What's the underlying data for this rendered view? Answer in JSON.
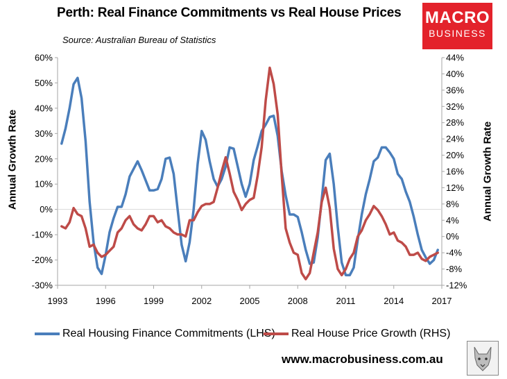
{
  "chart_data": {
    "type": "line",
    "title": "Perth: Real Finance Commitments vs Real House Prices",
    "subtitle": "Source: Australian Bureau of Statistics",
    "ylabel_left": "Annual Growth Rate",
    "ylabel_right": "Annual Growth Rate",
    "xlim": [
      1993,
      2017
    ],
    "x_ticks": [
      "1993",
      "1996",
      "1999",
      "2002",
      "2005",
      "2008",
      "2011",
      "2014",
      "2017"
    ],
    "y_left": {
      "range": [
        -30,
        60
      ],
      "ticks": [
        "60%",
        "50%",
        "40%",
        "30%",
        "20%",
        "10%",
        "0%",
        "-10%",
        "-20%",
        "-30%"
      ]
    },
    "y_right": {
      "range": [
        -12,
        44
      ],
      "ticks": [
        "44%",
        "40%",
        "36%",
        "32%",
        "28%",
        "24%",
        "20%",
        "16%",
        "12%",
        "8%",
        "4%",
        "0%",
        "-4%",
        "-8%",
        "-12%"
      ]
    },
    "series": [
      {
        "name": "Real Housing Finance Commitments (LHS)",
        "axis": "left",
        "color": "#4a7ebb",
        "x": [
          1993.25,
          1993.5,
          1993.75,
          1994,
          1994.25,
          1994.5,
          1994.75,
          1995,
          1995.25,
          1995.5,
          1995.75,
          1996,
          1996.25,
          1996.5,
          1996.75,
          1997,
          1997.25,
          1997.5,
          1997.75,
          1998,
          1998.25,
          1998.5,
          1998.75,
          1999,
          1999.25,
          1999.5,
          1999.75,
          2000,
          2000.25,
          2000.5,
          2000.75,
          2001,
          2001.25,
          2001.5,
          2001.75,
          2002,
          2002.25,
          2002.5,
          2002.75,
          2003,
          2003.25,
          2003.5,
          2003.75,
          2004,
          2004.25,
          2004.5,
          2004.75,
          2005,
          2005.25,
          2005.5,
          2005.75,
          2006,
          2006.25,
          2006.5,
          2006.75,
          2007,
          2007.25,
          2007.5,
          2007.75,
          2008,
          2008.25,
          2008.5,
          2008.75,
          2009,
          2009.25,
          2009.5,
          2009.75,
          2010,
          2010.25,
          2010.5,
          2010.75,
          2011,
          2011.25,
          2011.5,
          2011.75,
          2012,
          2012.25,
          2012.5,
          2012.75,
          2013,
          2013.25,
          2013.5,
          2013.75,
          2014,
          2014.25,
          2014.5,
          2014.75,
          2015,
          2015.25,
          2015.5,
          2015.75,
          2016,
          2016.25,
          2016.5,
          2016.75
        ],
        "values": [
          26,
          32,
          40,
          49.5,
          52,
          44,
          27,
          3,
          -13,
          -23,
          -25.5,
          -18,
          -9,
          -3.5,
          1,
          1,
          6,
          13,
          16,
          19,
          15.5,
          11.5,
          7.5,
          7.5,
          8,
          12,
          20,
          20.5,
          14,
          0,
          -14,
          -20.5,
          -13,
          0,
          18,
          31,
          27.5,
          19,
          12,
          9,
          12,
          17,
          24.5,
          24,
          17,
          10,
          5,
          10,
          19.5,
          25,
          31,
          33.5,
          36.5,
          37,
          29,
          15,
          5.5,
          -2,
          -2,
          -3,
          -9,
          -16,
          -21.5,
          -21,
          -11,
          4,
          19.5,
          22,
          10,
          -7,
          -21,
          -26,
          -26,
          -23,
          -12,
          -2,
          6,
          12,
          19,
          20.5,
          24.5,
          24.5,
          22.5,
          20,
          14,
          12,
          7,
          3,
          -3,
          -10,
          -16,
          -19,
          -21.5,
          -20,
          -16
        ]
      },
      {
        "name": "Real House Price Growth (RHS)",
        "axis": "right",
        "color": "#be4b48",
        "x": [
          1993.25,
          1993.5,
          1993.75,
          1994,
          1994.25,
          1994.5,
          1994.75,
          1995,
          1995.25,
          1995.5,
          1995.75,
          1996,
          1996.25,
          1996.5,
          1996.75,
          1997,
          1997.25,
          1997.5,
          1997.75,
          1998,
          1998.25,
          1998.5,
          1998.75,
          1999,
          1999.25,
          1999.5,
          1999.75,
          2000,
          2000.25,
          2000.5,
          2000.75,
          2001,
          2001.25,
          2001.5,
          2001.75,
          2002,
          2002.25,
          2002.5,
          2002.75,
          2003,
          2003.25,
          2003.5,
          2003.75,
          2004,
          2004.25,
          2004.5,
          2004.75,
          2005,
          2005.25,
          2005.5,
          2005.75,
          2006,
          2006.25,
          2006.5,
          2006.75,
          2007,
          2007.25,
          2007.5,
          2007.75,
          2008,
          2008.25,
          2008.5,
          2008.75,
          2009,
          2009.25,
          2009.5,
          2009.75,
          2010,
          2010.25,
          2010.5,
          2010.75,
          2011,
          2011.25,
          2011.5,
          2011.75,
          2012,
          2012.25,
          2012.5,
          2012.75,
          2013,
          2013.25,
          2013.5,
          2013.75,
          2014,
          2014.25,
          2014.5,
          2014.75,
          2015,
          2015.25,
          2015.5,
          2015.75,
          2016,
          2016.25,
          2016.5,
          2016.75
        ],
        "values": [
          2.5,
          2,
          3.5,
          7,
          5.5,
          5,
          2,
          -2.5,
          -2,
          -4,
          -5,
          -4.5,
          -3.5,
          -2.5,
          1,
          2,
          4,
          5,
          3,
          2,
          1.5,
          3,
          5,
          5,
          3.5,
          4,
          2.5,
          2,
          1,
          0.5,
          0.5,
          0,
          4,
          4,
          6,
          7.5,
          8,
          8,
          8.5,
          12,
          16,
          19.5,
          15.5,
          11,
          9,
          6.5,
          8,
          9,
          9.5,
          15,
          22,
          33.5,
          41.5,
          37.5,
          30,
          15,
          2,
          -1.5,
          -4,
          -4.5,
          -9,
          -10.5,
          -9,
          -4,
          1,
          8.5,
          12,
          7,
          -3,
          -8,
          -9.5,
          -8,
          -5.5,
          -4,
          0,
          1.5,
          4,
          5.5,
          7.5,
          6.5,
          5,
          3,
          0.5,
          1,
          -1,
          -1.5,
          -2.5,
          -4.5,
          -4.5,
          -4,
          -5.5,
          -6,
          -5,
          -4.5,
          -4
        ]
      }
    ],
    "legend_position": "bottom"
  },
  "branding": {
    "logo_line1": "MACRO",
    "logo_line2": "BUSINESS",
    "website": "www.macrobusiness.com.au",
    "logo_color": "#e3222b"
  },
  "colors": {
    "grid": "#d9d9d9",
    "axis": "#a6a6a6"
  }
}
